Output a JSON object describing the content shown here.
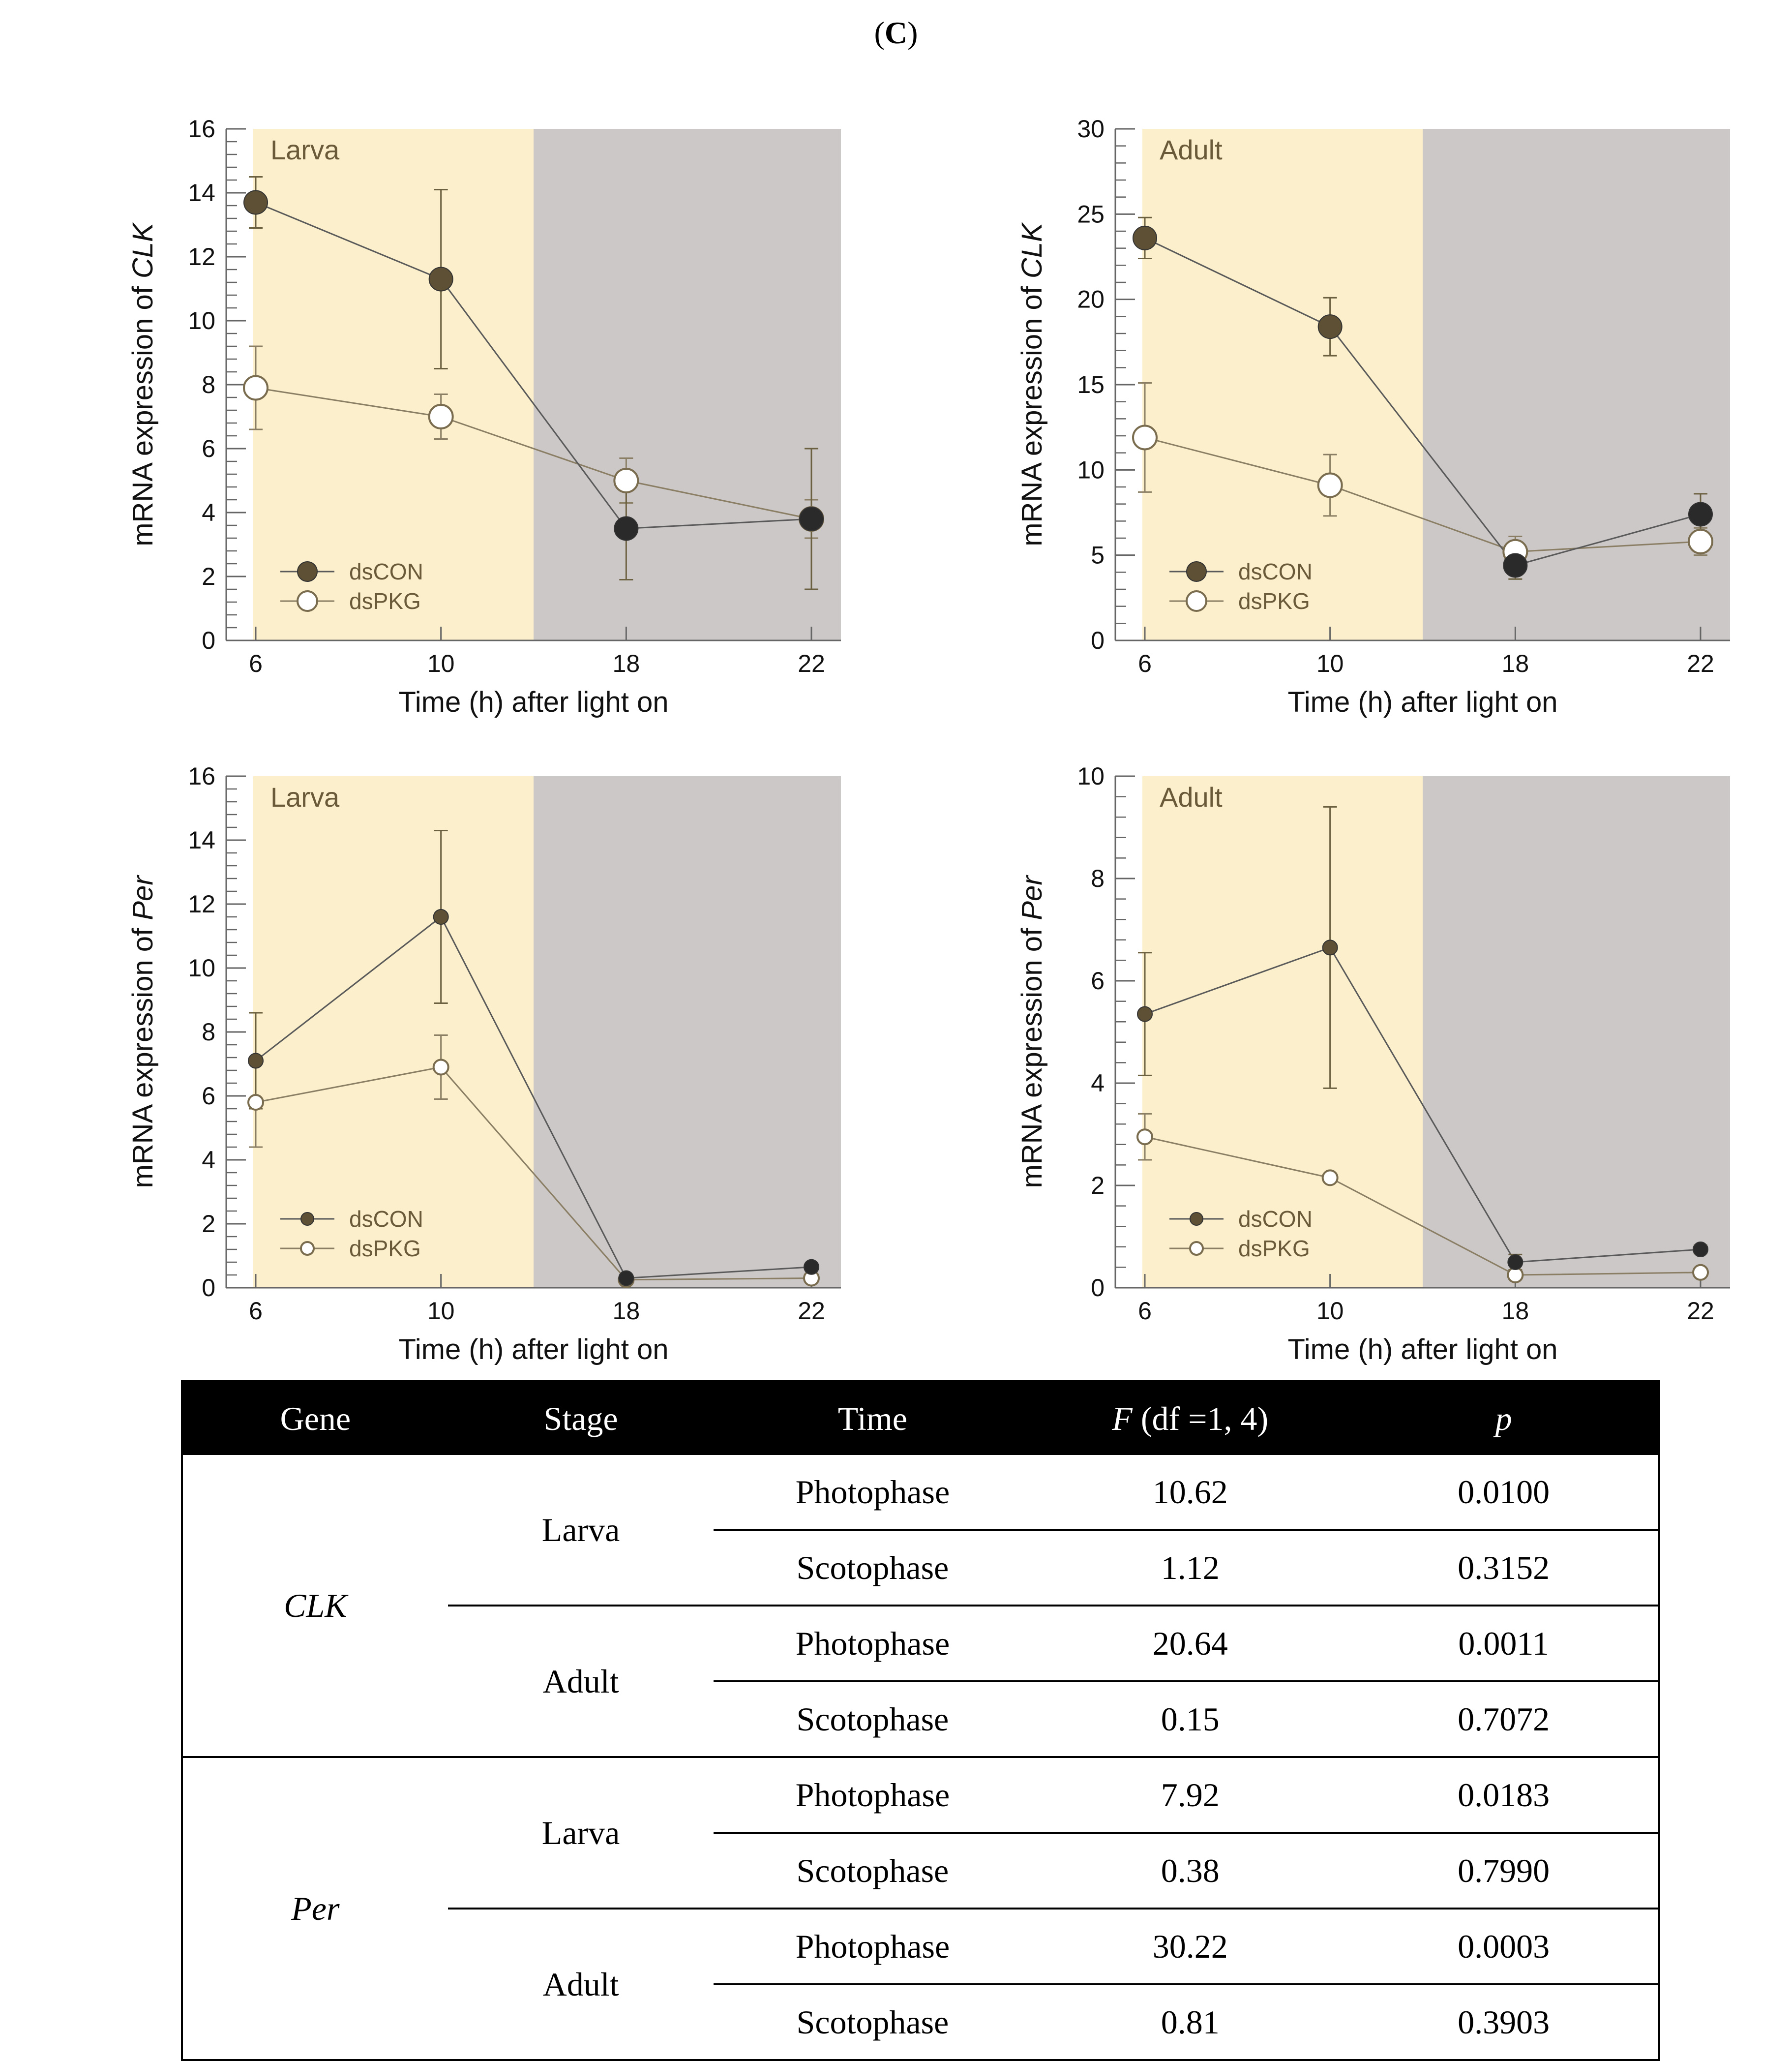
{
  "panel_label": {
    "open": "(",
    "letter": "C",
    "close": ")"
  },
  "colors": {
    "dsCON": "#5e5034",
    "dsCON_dark": "#2a2a2a",
    "dsPKG_fill": "#ffffff",
    "dsPKG_stroke": "#7a6c4e",
    "photophase": "#fcf0cc",
    "scotophase": "#cdc8c8"
  },
  "chart_data": [
    {
      "type": "line",
      "title": "Larva",
      "ylabel_prefix": "mRNA expression of ",
      "ylabel_gene": "CLK",
      "xlabel": "Time (h) after light on",
      "categories": [
        "6",
        "10",
        "18",
        "22"
      ],
      "photophase_end_fraction": 0.5,
      "ylim": [
        0,
        16
      ],
      "yticks": [
        0,
        2,
        4,
        6,
        8,
        10,
        12,
        14,
        16
      ],
      "marker": "large",
      "series": [
        {
          "name": "dsCON",
          "values": [
            13.7,
            11.3,
            3.5,
            3.8
          ],
          "errors": [
            0.8,
            2.8,
            1.6,
            2.2
          ]
        },
        {
          "name": "dsPKG",
          "values": [
            7.9,
            7.0,
            5.0,
            3.8
          ],
          "errors": [
            1.3,
            0.7,
            0.7,
            0.6
          ]
        }
      ]
    },
    {
      "type": "line",
      "title": "Adult",
      "ylabel_prefix": "mRNA expression of ",
      "ylabel_gene": "CLK",
      "xlabel": "Time (h) after light on",
      "categories": [
        "6",
        "10",
        "18",
        "22"
      ],
      "photophase_end_fraction": 0.5,
      "ylim": [
        0,
        30
      ],
      "yticks": [
        0,
        5,
        10,
        15,
        20,
        25,
        30
      ],
      "marker": "large",
      "series": [
        {
          "name": "dsCON",
          "values": [
            23.6,
            18.4,
            4.4,
            7.4
          ],
          "errors": [
            1.2,
            1.7,
            0.8,
            1.2
          ]
        },
        {
          "name": "dsPKG",
          "values": [
            11.9,
            9.1,
            5.2,
            5.8
          ],
          "errors": [
            3.2,
            1.8,
            0.9,
            0.8
          ]
        }
      ]
    },
    {
      "type": "line",
      "title": "Larva",
      "ylabel_prefix": "mRNA expression of ",
      "ylabel_gene": "Per",
      "xlabel": "Time (h) after light on",
      "categories": [
        "6",
        "10",
        "18",
        "22"
      ],
      "photophase_end_fraction": 0.5,
      "ylim": [
        0,
        16
      ],
      "yticks": [
        0,
        2,
        4,
        6,
        8,
        10,
        12,
        14,
        16
      ],
      "marker": "small",
      "series": [
        {
          "name": "dsCON",
          "values": [
            7.1,
            11.6,
            0.3,
            0.65
          ],
          "errors": [
            1.5,
            2.7,
            0.1,
            0.1
          ]
        },
        {
          "name": "dsPKG",
          "values": [
            5.8,
            6.9,
            0.25,
            0.3
          ],
          "errors": [
            1.4,
            1.0,
            0.1,
            0.1
          ]
        }
      ]
    },
    {
      "type": "line",
      "title": "Adult",
      "ylabel_prefix": "mRNA expression of ",
      "ylabel_gene": "Per",
      "xlabel": "Time (h) after light on",
      "categories": [
        "6",
        "10",
        "18",
        "22"
      ],
      "photophase_end_fraction": 0.5,
      "ylim": [
        0,
        10
      ],
      "yticks": [
        0,
        2,
        4,
        6,
        8,
        10
      ],
      "marker": "small",
      "series": [
        {
          "name": "dsCON",
          "values": [
            5.35,
            6.65,
            0.5,
            0.75
          ],
          "errors": [
            1.2,
            2.75,
            0.15,
            0.08
          ]
        },
        {
          "name": "dsPKG",
          "values": [
            2.95,
            2.15,
            0.25,
            0.3
          ],
          "errors": [
            0.45,
            0.05,
            0.05,
            0.05
          ]
        }
      ]
    }
  ],
  "table": {
    "headers": {
      "gene": "Gene",
      "stage": "Stage",
      "time": "Time",
      "f_italic": "F",
      "f_rest": " (df =1, 4)",
      "p": "p"
    },
    "rows": [
      {
        "gene": "CLK",
        "stage": "Larva",
        "time": "Photophase",
        "f": "10.62",
        "p": "0.0100"
      },
      {
        "gene": "CLK",
        "stage": "Larva",
        "time": "Scotophase",
        "f": "1.12",
        "p": "0.3152"
      },
      {
        "gene": "CLK",
        "stage": "Adult",
        "time": "Photophase",
        "f": "20.64",
        "p": "0.0011"
      },
      {
        "gene": "CLK",
        "stage": "Adult",
        "time": "Scotophase",
        "f": "0.15",
        "p": "0.7072"
      },
      {
        "gene": "Per",
        "stage": "Larva",
        "time": "Photophase",
        "f": "7.92",
        "p": "0.0183"
      },
      {
        "gene": "Per",
        "stage": "Larva",
        "time": "Scotophase",
        "f": "0.38",
        "p": "0.7990"
      },
      {
        "gene": "Per",
        "stage": "Adult",
        "time": "Photophase",
        "f": "30.22",
        "p": "0.0003"
      },
      {
        "gene": "Per",
        "stage": "Adult",
        "time": "Scotophase",
        "f": "0.81",
        "p": "0.3903"
      }
    ]
  }
}
